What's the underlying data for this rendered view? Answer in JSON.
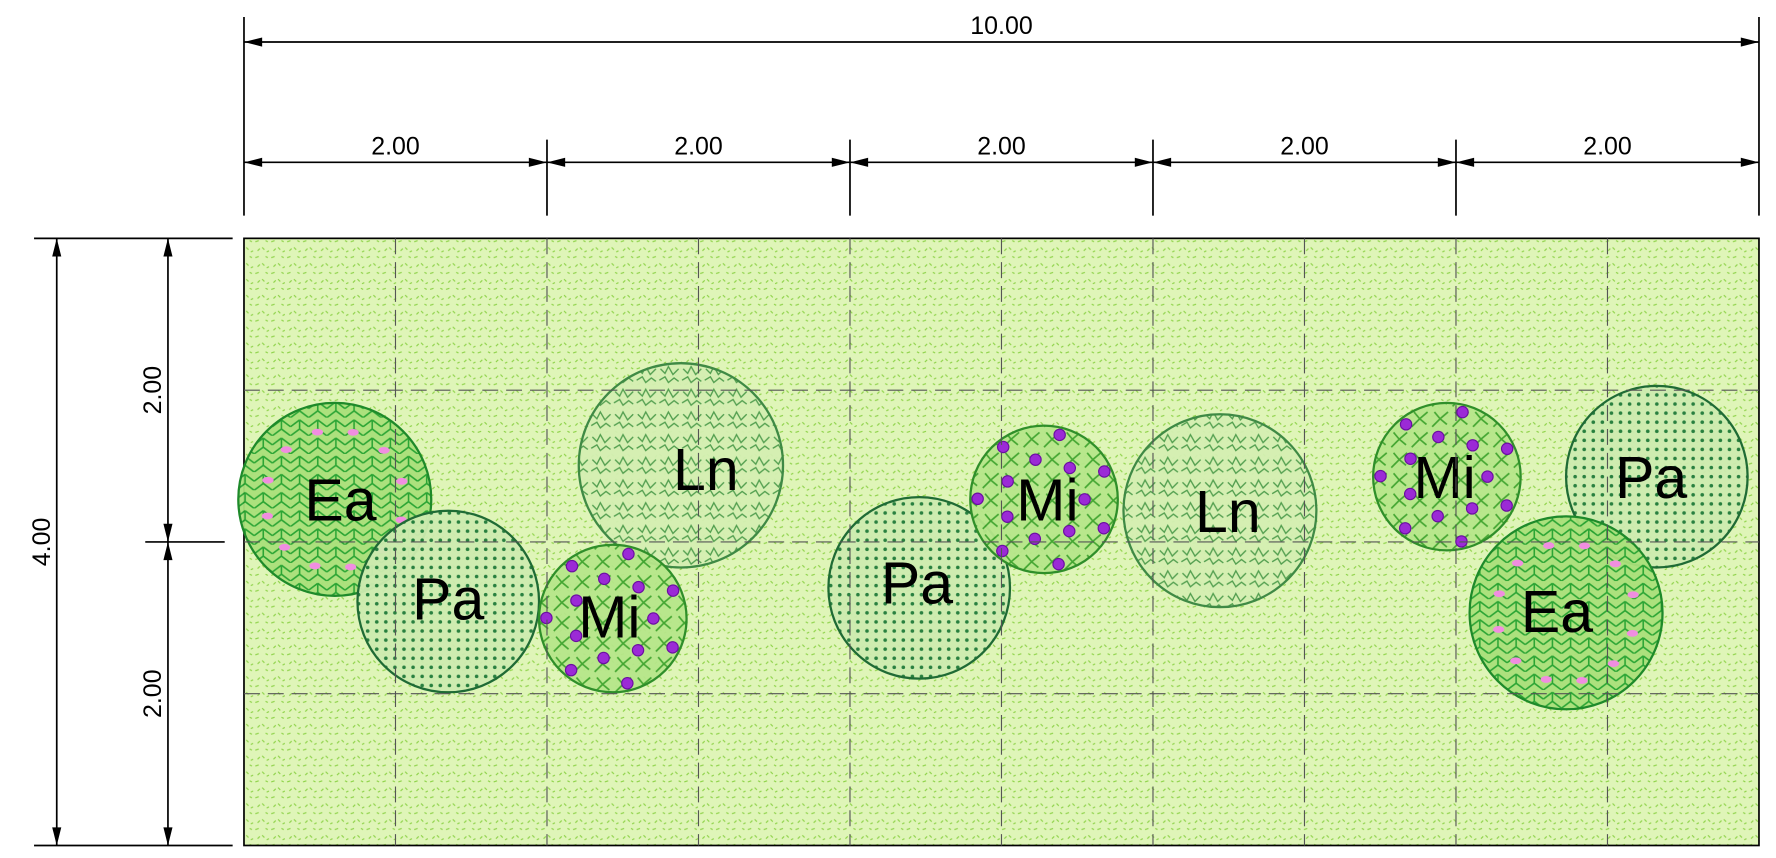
{
  "dimensions": {
    "total_width": "10.00",
    "width_segments": [
      "2.00",
      "2.00",
      "2.00",
      "2.00",
      "2.00"
    ],
    "total_height": "4.00",
    "height_segments": [
      "2.00",
      "2.00"
    ]
  },
  "plants": [
    {
      "label": "Ea"
    },
    {
      "label": "Pa"
    },
    {
      "label": "Ln"
    },
    {
      "label": "Mi"
    },
    {
      "label": "Pa"
    },
    {
      "label": "Mi"
    },
    {
      "label": "Ln"
    },
    {
      "label": "Mi"
    },
    {
      "label": "Pa"
    },
    {
      "label": "Ea"
    }
  ]
}
